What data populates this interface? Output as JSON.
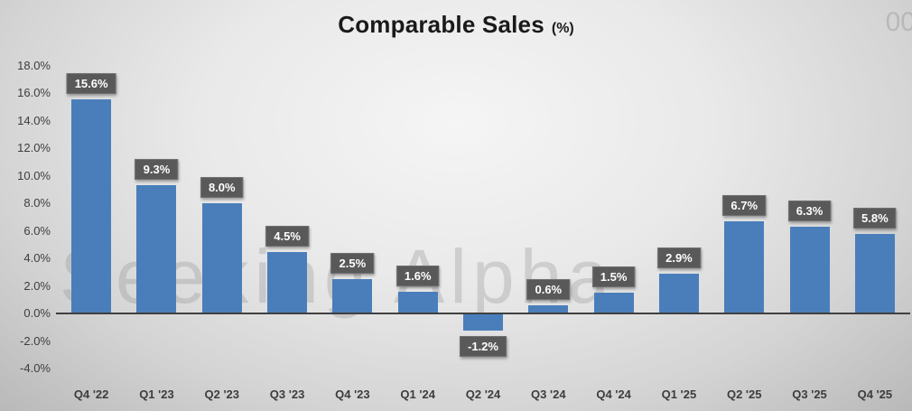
{
  "title": {
    "main": "Comparable Sales",
    "unit": "(%)"
  },
  "watermark": "Seeking Alpha",
  "watermark_fragment": "00",
  "colors": {
    "bar": "#4a7ebb",
    "label_bg": "#595959",
    "label_text": "#ffffff",
    "axis_line": "#404040",
    "tick_text": "#3d3d3d"
  },
  "chart_data": {
    "type": "bar",
    "title": "Comparable Sales (%)",
    "categories": [
      "Q4 '22",
      "Q1 '23",
      "Q2 '23",
      "Q3 '23",
      "Q4 '23",
      "Q1 '24",
      "Q2 '24",
      "Q3 '24",
      "Q4 '24",
      "Q1 '25",
      "Q2 '25",
      "Q3 '25",
      "Q4 '25"
    ],
    "values": [
      15.6,
      9.3,
      8.0,
      4.5,
      2.5,
      1.6,
      -1.2,
      0.6,
      1.5,
      2.9,
      6.7,
      6.3,
      5.8
    ],
    "value_labels": [
      "15.6%",
      "9.3%",
      "8.0%",
      "4.5%",
      "2.5%",
      "1.6%",
      "-1.2%",
      "0.6%",
      "1.5%",
      "2.9%",
      "6.7%",
      "6.3%",
      "5.8%"
    ],
    "xlabel": "",
    "ylabel": "",
    "ylim": [
      -4.0,
      18.0
    ],
    "ytick_interval": 2.0,
    "yticks": [
      "18.0%",
      "16.0%",
      "14.0%",
      "12.0%",
      "10.0%",
      "8.0%",
      "6.0%",
      "4.0%",
      "2.0%",
      "0.0%",
      "-2.0%",
      "-4.0%"
    ],
    "grid": false,
    "legend": "none"
  }
}
